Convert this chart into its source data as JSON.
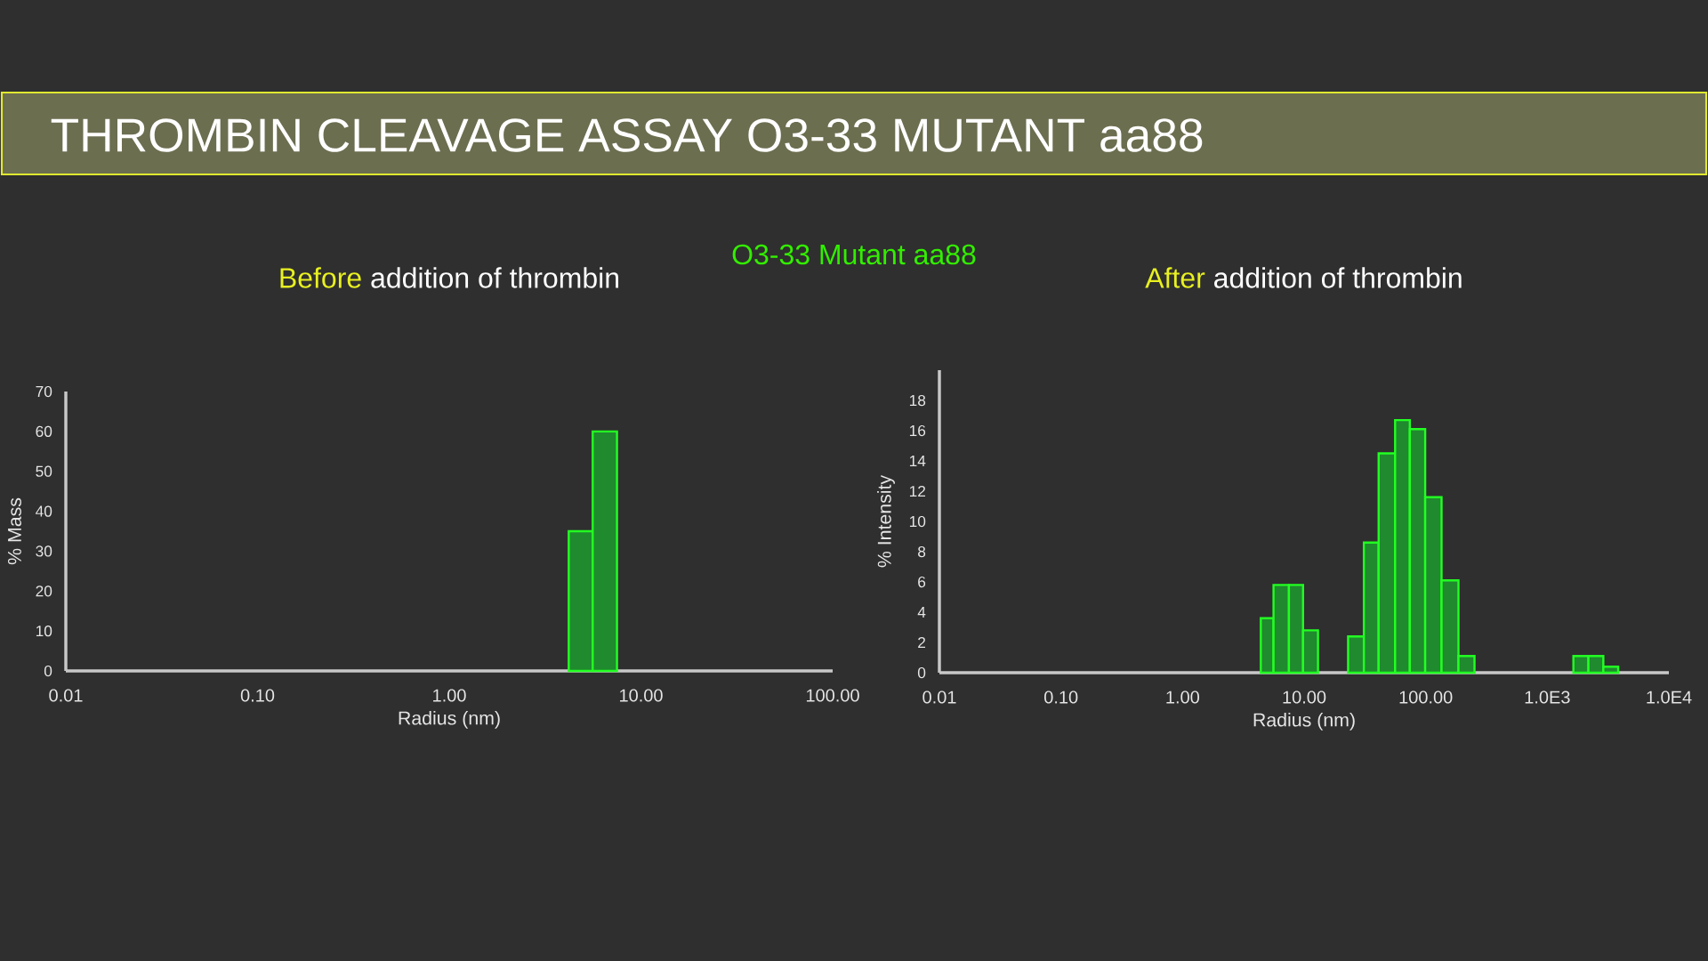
{
  "chart_data": [
    {
      "type": "histogram",
      "title": "**Before** addition of thrombin",
      "xlabel": "Radius (nm)",
      "ylabel": "% Mass",
      "annotations": [
        "THROMBIN CLEAVAGE ASSAY O3-33 MUTANT aa88",
        "O3-33 Mutant aa88"
      ],
      "bins": [
        4.2,
        5.6,
        7.5
      ],
      "values": [
        35,
        60
      ],
      "color": "#1f8a2e",
      "log": "x",
      "xlim": [
        0.01,
        100
      ],
      "xticks": [
        {
          "value": 0.01,
          "label": "0.01"
        },
        {
          "value": 0.1,
          "label": "0.10"
        },
        {
          "value": 1,
          "label": "1.00"
        },
        {
          "value": 10,
          "label": "10.00"
        },
        {
          "value": 100,
          "label": "100.00"
        }
      ],
      "ylim": [
        0,
        70
      ],
      "yticks": [
        0,
        10,
        20,
        30,
        40,
        50,
        60,
        70
      ]
    },
    {
      "type": "histogram",
      "title": "**After** addition of thrombin",
      "xlabel": "Radius (nm)",
      "ylabel": "% Intensity",
      "bins": [
        4.4,
        5.6,
        7.5,
        9.8,
        13,
        23,
        31,
        41,
        56,
        74,
        99,
        135,
        186,
        252,
        1640,
        2180,
        2890,
        3830
      ],
      "values": [
        3.6,
        5.8,
        5.8,
        2.8,
        null,
        2.4,
        8.6,
        14.5,
        16.7,
        16.1,
        11.6,
        6.1,
        1.1,
        null,
        1.1,
        1.1,
        0.4
      ],
      "color": "#1f8a2e",
      "log": "x",
      "xlim": [
        0.01,
        10000
      ],
      "xticks": [
        {
          "value": 0.01,
          "label": "0.01"
        },
        {
          "value": 0.1,
          "label": "0.10"
        },
        {
          "value": 1,
          "label": "1.00"
        },
        {
          "value": 10,
          "label": "10.00"
        },
        {
          "value": 100,
          "label": "100.00"
        },
        {
          "value": 1000,
          "label": "1.0E3"
        },
        {
          "value": 10000,
          "label": "1.0E4"
        }
      ],
      "ylim": [
        0,
        20
      ],
      "yticks": [
        0,
        2,
        4,
        6,
        8,
        10,
        12,
        14,
        16,
        18
      ]
    }
  ]
}
